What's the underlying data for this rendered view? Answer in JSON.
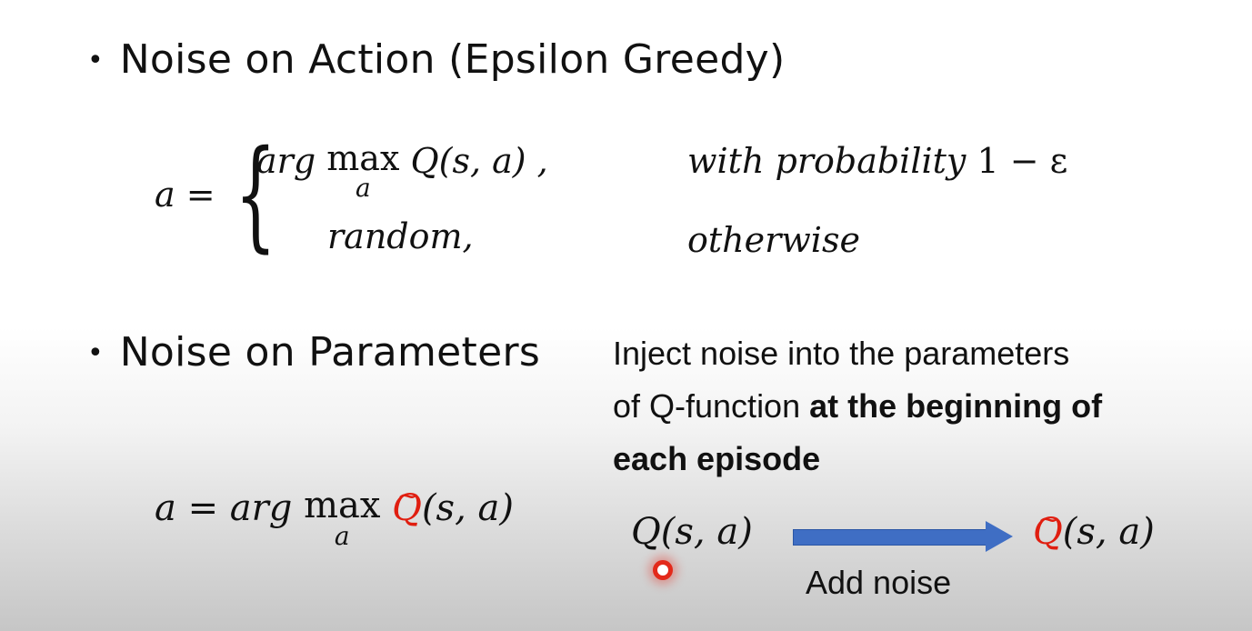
{
  "bullets": {
    "action": "Noise on Action (Epsilon Greedy)",
    "parameters": "Noise on Parameters"
  },
  "bullet_marker": "•",
  "equation1": {
    "lhs": "a =",
    "case1_arg": "arg",
    "max_op": "max",
    "max_sub": "a",
    "case1_rest": "Q(s, a) ,",
    "case1_condition_text": "with probability",
    "case1_condition_value": "1 − ε",
    "case2": "random,",
    "case2_condition": "otherwise"
  },
  "equation2": {
    "lhs": "a = arg",
    "max_op": "max",
    "max_sub": "a",
    "q_letter": "Q",
    "tilde": "~",
    "args": "(s, a)"
  },
  "inject": {
    "line1": "Inject noise into the parameters",
    "line2_plain": "of Q-function",
    "line2_bold": "at the beginning of",
    "line3_bold": "each episode"
  },
  "transform": {
    "from": "Q(s, a)",
    "to_letter": "Q",
    "to_tilde": "~",
    "to_args": "(s, a)",
    "arrow_label": "Add noise"
  },
  "colors": {
    "accent_red": "#e01e10",
    "arrow_blue": "#3f6ec4"
  }
}
